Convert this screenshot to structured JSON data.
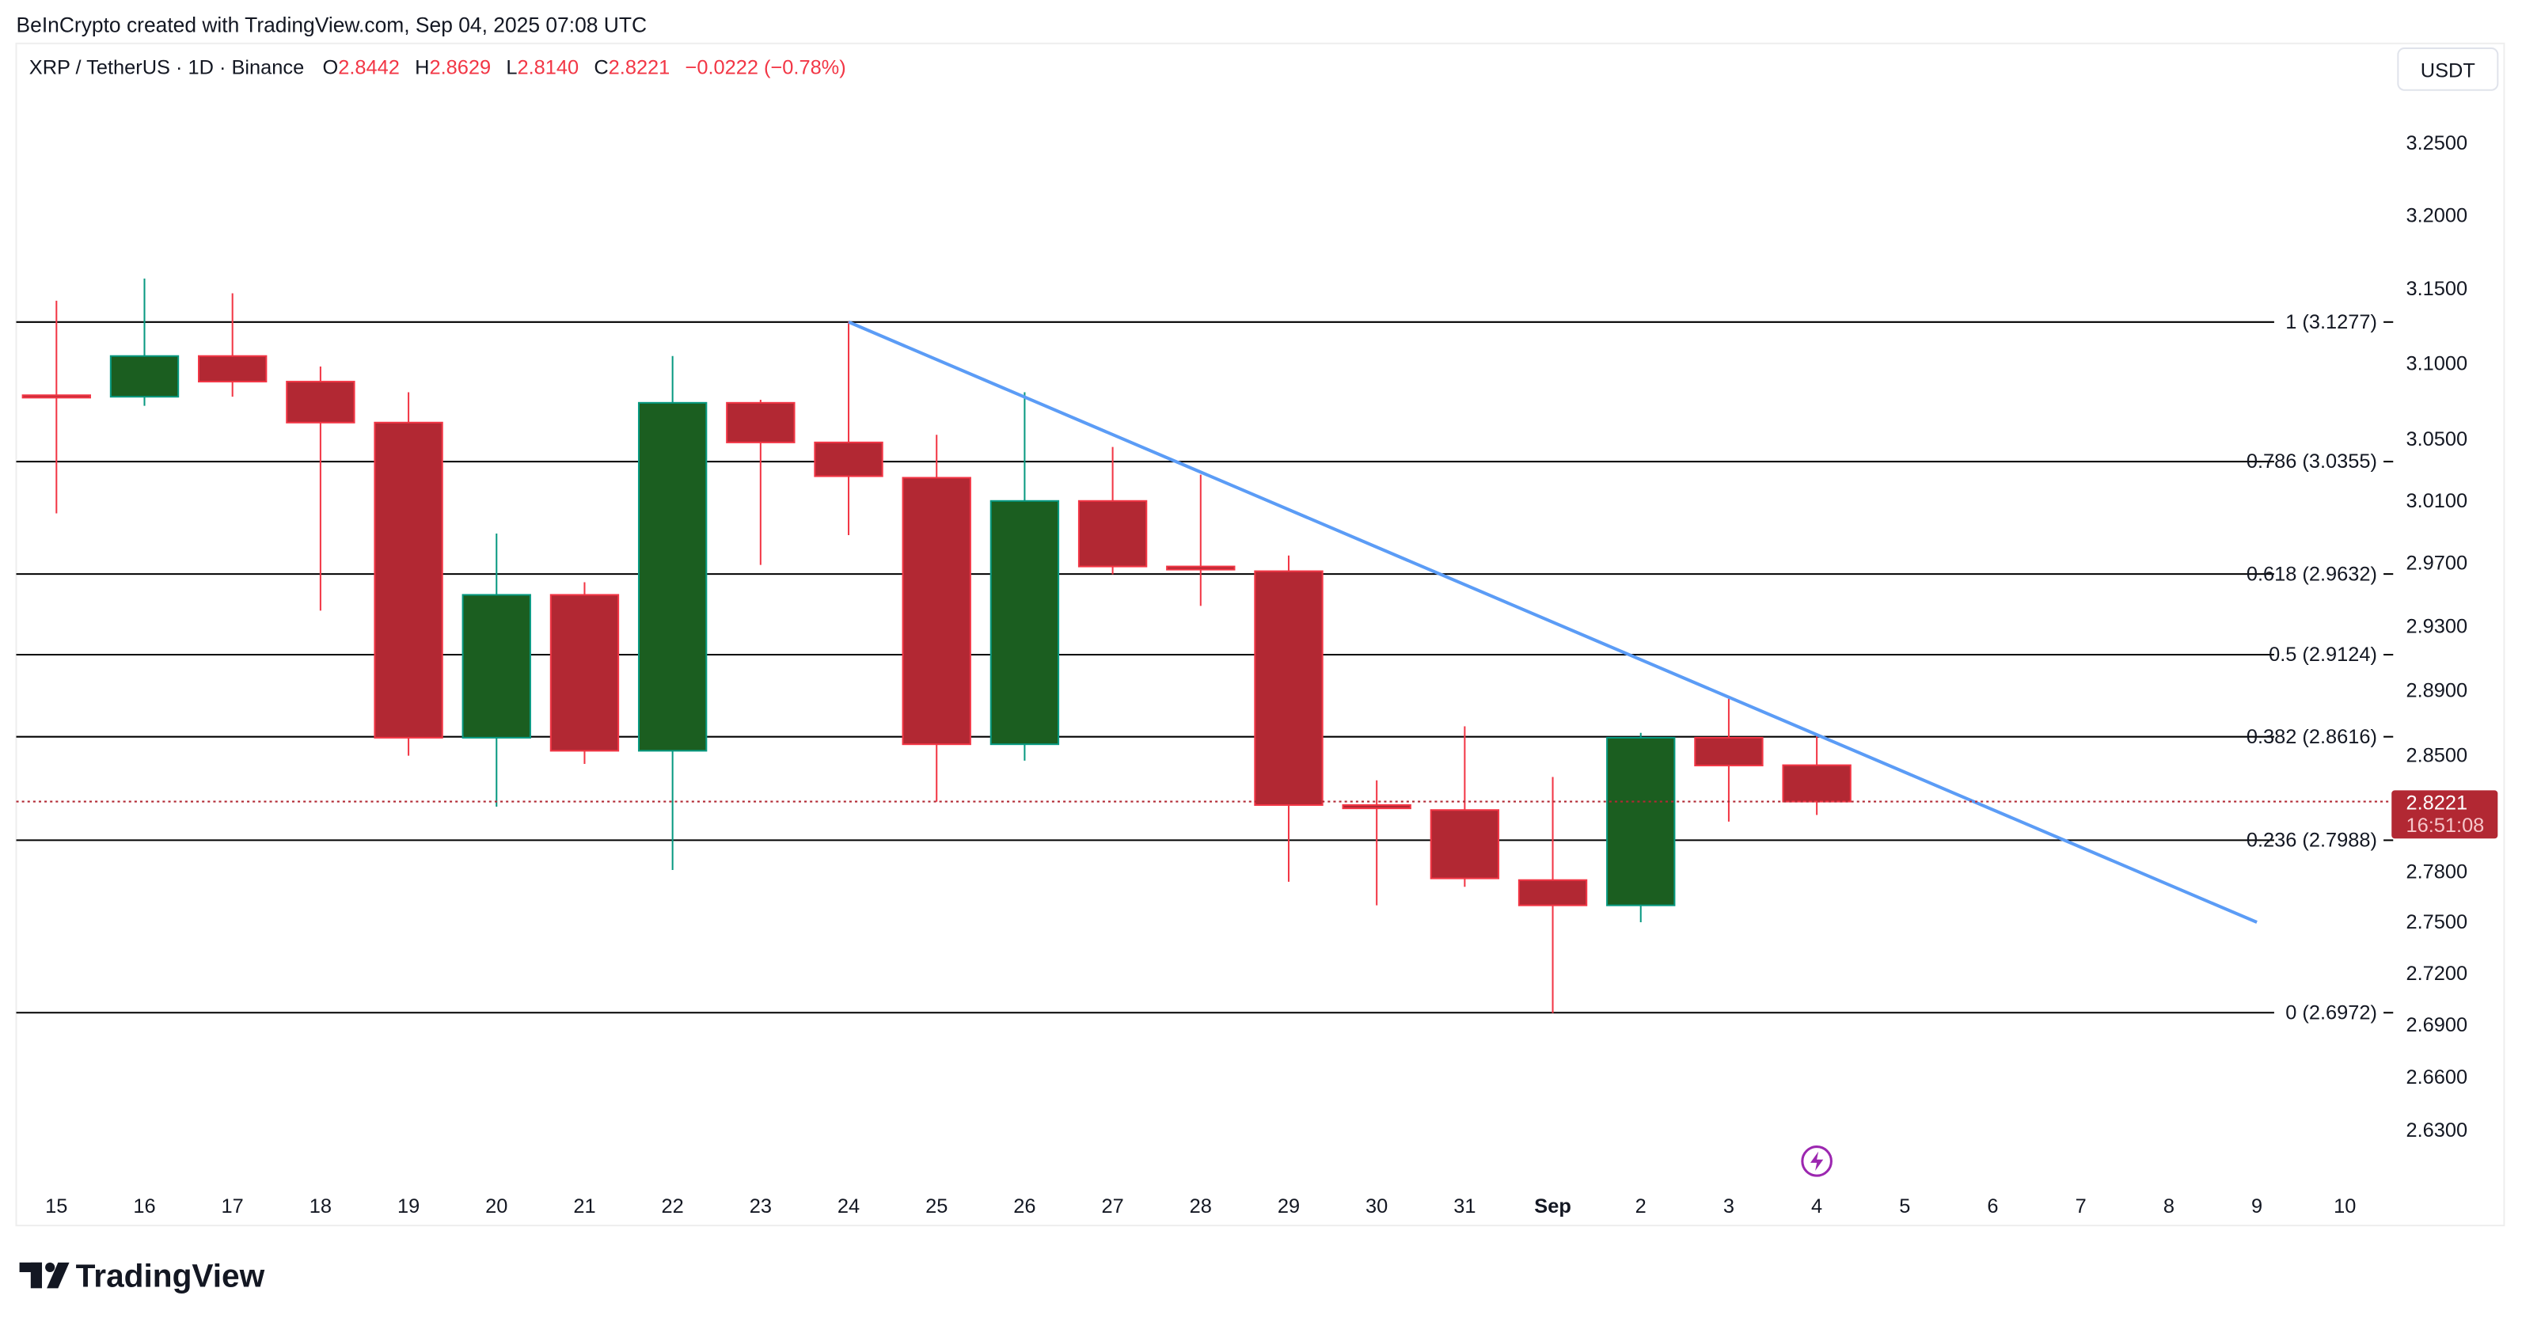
{
  "header": {
    "attribution": "BeInCrypto created with TradingView.com, Sep 04, 2025 07:08 UTC",
    "symbol": "XRP / TetherUS · 1D · Binance",
    "o_label": "O",
    "o_value": "2.8442",
    "h_label": "H",
    "h_value": "2.8629",
    "l_label": "L",
    "l_value": "2.8140",
    "c_label": "C",
    "c_value": "2.8221",
    "change": "−0.0222 (−0.78%)"
  },
  "currency_button": "USDT",
  "logo_text": "TradingView",
  "last_price": {
    "value": "2.8221",
    "countdown": "16:51:08",
    "price": 2.8221
  },
  "colors": {
    "up_body": "#1b5e20",
    "up_border": "#089981",
    "down_body": "#b22833",
    "down_border": "#f23645",
    "trendline": "#5b9cf6",
    "fib": "#000000",
    "last_price": "#b22833",
    "event": "#9c27b0"
  },
  "chart_data": {
    "type": "candlestick",
    "scale": "log",
    "ylim": [
      2.6,
      3.3
    ],
    "y_ticks": [
      "3.2500",
      "3.2000",
      "3.1500",
      "3.1000",
      "3.0500",
      "3.0100",
      "2.9700",
      "2.9300",
      "2.8900",
      "2.8500",
      "2.7800",
      "2.7500",
      "2.7200",
      "2.6900",
      "2.6600",
      "2.6300"
    ],
    "x_ticks": [
      "15",
      "16",
      "17",
      "18",
      "19",
      "20",
      "21",
      "22",
      "23",
      "24",
      "25",
      "26",
      "27",
      "28",
      "29",
      "30",
      "31",
      "Sep",
      "2",
      "3",
      "4",
      "5",
      "6",
      "7",
      "8",
      "9",
      "10"
    ],
    "candles": [
      {
        "d": "15",
        "o": 3.079,
        "h": 3.142,
        "l": 3.002,
        "c": 3.078
      },
      {
        "d": "16",
        "o": 3.078,
        "h": 3.157,
        "l": 3.072,
        "c": 3.105
      },
      {
        "d": "17",
        "o": 3.105,
        "h": 3.147,
        "l": 3.078,
        "c": 3.088
      },
      {
        "d": "18",
        "o": 3.088,
        "h": 3.098,
        "l": 2.94,
        "c": 3.061
      },
      {
        "d": "19",
        "o": 3.061,
        "h": 3.081,
        "l": 2.85,
        "c": 2.861
      },
      {
        "d": "20",
        "o": 2.861,
        "h": 2.989,
        "l": 2.819,
        "c": 2.95
      },
      {
        "d": "21",
        "o": 2.95,
        "h": 2.958,
        "l": 2.845,
        "c": 2.853
      },
      {
        "d": "22",
        "o": 2.853,
        "h": 3.105,
        "l": 2.781,
        "c": 3.074
      },
      {
        "d": "23",
        "o": 3.074,
        "h": 3.076,
        "l": 2.969,
        "c": 3.048
      },
      {
        "d": "24",
        "o": 3.048,
        "h": 3.128,
        "l": 2.988,
        "c": 3.026
      },
      {
        "d": "25",
        "o": 3.025,
        "h": 3.053,
        "l": 2.822,
        "c": 2.857
      },
      {
        "d": "26",
        "o": 2.857,
        "h": 3.081,
        "l": 2.847,
        "c": 3.01
      },
      {
        "d": "27",
        "o": 3.01,
        "h": 3.045,
        "l": 2.963,
        "c": 2.968
      },
      {
        "d": "28",
        "o": 2.968,
        "h": 3.027,
        "l": 2.943,
        "c": 2.966
      },
      {
        "d": "29",
        "o": 2.965,
        "h": 2.975,
        "l": 2.774,
        "c": 2.82
      },
      {
        "d": "30",
        "o": 2.82,
        "h": 2.835,
        "l": 2.76,
        "c": 2.818
      },
      {
        "d": "31",
        "o": 2.817,
        "h": 2.868,
        "l": 2.771,
        "c": 2.776
      },
      {
        "d": "Sep 1",
        "o": 2.775,
        "h": 2.837,
        "l": 2.697,
        "c": 2.76
      },
      {
        "d": "2",
        "o": 2.76,
        "h": 2.864,
        "l": 2.75,
        "c": 2.861
      },
      {
        "d": "3",
        "o": 2.861,
        "h": 2.885,
        "l": 2.81,
        "c": 2.844
      },
      {
        "d": "4",
        "o": 2.8442,
        "h": 2.8629,
        "l": 2.814,
        "c": 2.8221
      }
    ],
    "fib_levels": [
      {
        "label": "1 (3.1277)",
        "price": 3.1277
      },
      {
        "label": "0.786 (3.0355)",
        "price": 3.0355
      },
      {
        "label": "0.618 (2.9632)",
        "price": 2.9632
      },
      {
        "label": "0.5 (2.9124)",
        "price": 2.9124
      },
      {
        "label": "0.382 (2.8616)",
        "price": 2.8616
      },
      {
        "label": "0.236 (2.7988)",
        "price": 2.7988
      },
      {
        "label": "0 (2.6972)",
        "price": 2.6972
      }
    ],
    "trendline": {
      "from": {
        "index": 9,
        "price": 3.1277
      },
      "to": {
        "index": 25,
        "price": 2.75
      }
    },
    "event_marker_index": 20
  }
}
